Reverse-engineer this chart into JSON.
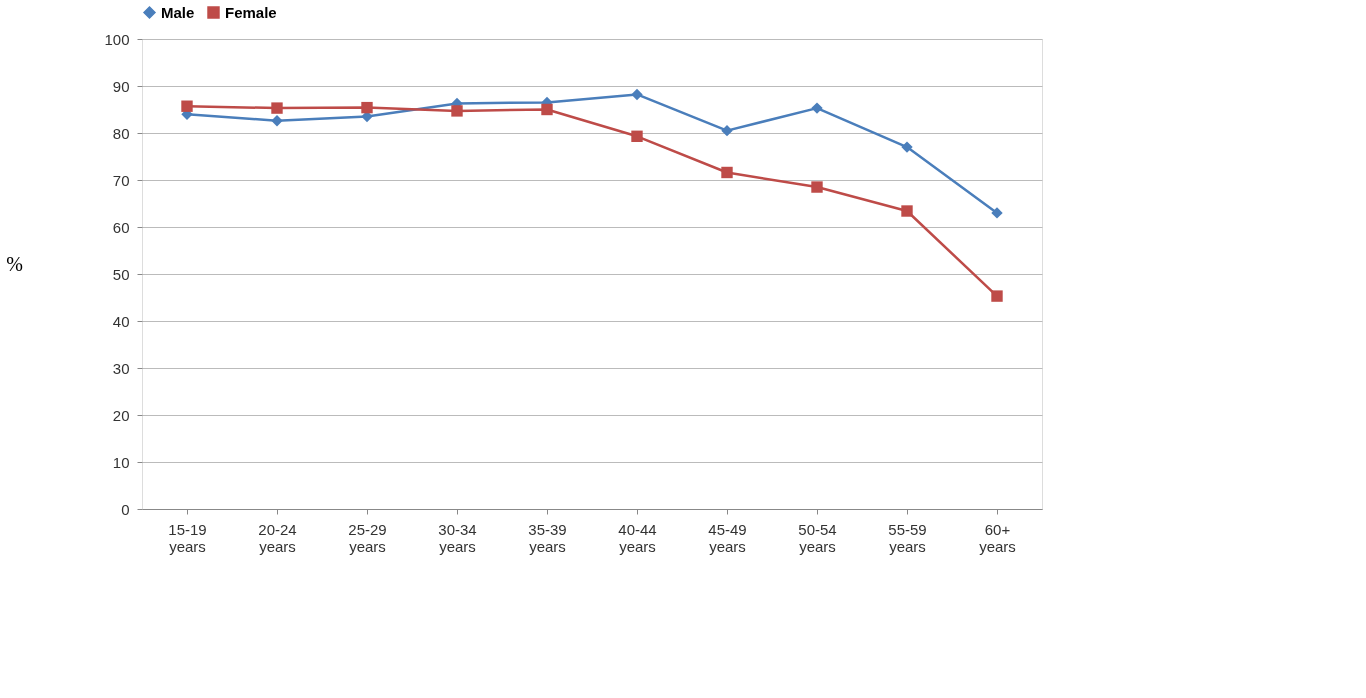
{
  "chart_data": {
    "type": "line",
    "ylabel": "%",
    "categories": [
      "15-19 years",
      "20-24 years",
      "25-29 years",
      "30-34 years",
      "35-39 years",
      "40-44 years",
      "45-49 years",
      "50-54 years",
      "55-59 years",
      "60+ years"
    ],
    "series": [
      {
        "name": "Male",
        "color": "#4a7ebb",
        "marker": "diamond",
        "values": [
          84,
          82.6,
          83.5,
          86.3,
          86.5,
          88.2,
          80.5,
          85.3,
          77,
          63
        ]
      },
      {
        "name": "Female",
        "color": "#be4b48",
        "marker": "square",
        "values": [
          85.7,
          85.3,
          85.4,
          84.7,
          85,
          79.3,
          71.6,
          68.5,
          63.4,
          45.3
        ]
      }
    ],
    "ylim": [
      0,
      100
    ],
    "yticks": [
      0,
      10,
      20,
      30,
      40,
      50,
      60,
      70,
      80,
      90,
      100
    ],
    "grid": "y",
    "legend": "top",
    "line_style": "solid"
  }
}
